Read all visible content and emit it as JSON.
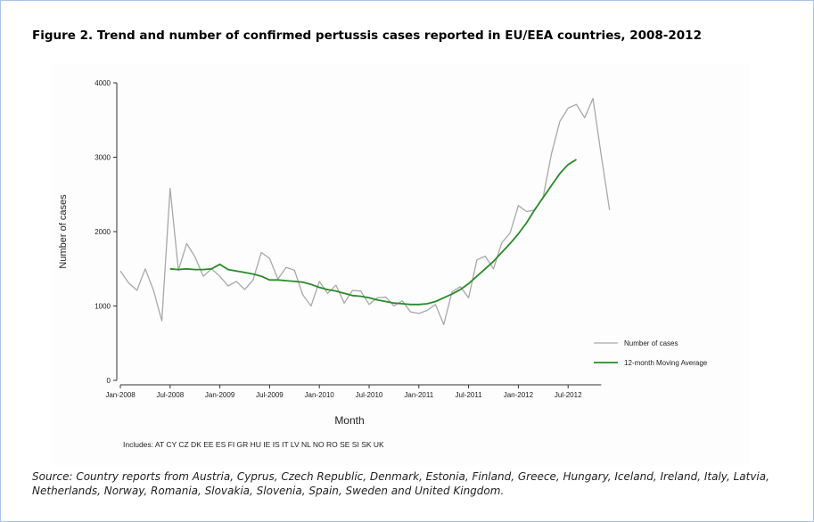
{
  "figure": {
    "title": "Figure 2. Trend and number of confirmed pertussis cases reported in EU/EEA countries, 2008-2012",
    "includes": "Includes: AT CY CZ DK EE ES FI GR HU IE IS IT LV NL NO RO SE SI SK UK",
    "source": "Source: Country reports from Austria, Cyprus, Czech Republic, Denmark, Estonia, Finland, Greece, Hungary, Iceland, Ireland, Italy, Latvia, Netherlands, Norway, Romania, Slovakia, Slovenia, Spain, Sweden and United Kingdom."
  },
  "chart_data": {
    "type": "line",
    "xlabel": "Month",
    "ylabel": "Number of cases",
    "ylim": [
      0,
      4000
    ],
    "y_ticks": [
      "0",
      "1000",
      "2000",
      "3000",
      "4000"
    ],
    "x_ticks": [
      "Jan-2008",
      "Jul-2008",
      "Jan-2009",
      "Jul-2009",
      "Jan-2010",
      "Jul-2010",
      "Jan-2011",
      "Jul-2011",
      "Jan-2012",
      "Jul-2012"
    ],
    "x_start": "Jan-2008",
    "grid": false,
    "legend_position": "right",
    "series": [
      {
        "name": "Number of cases",
        "color": "#a8a8a8",
        "values": [
          1470,
          1310,
          1210,
          1500,
          1210,
          800,
          2580,
          1480,
          1840,
          1660,
          1400,
          1500,
          1400,
          1270,
          1330,
          1220,
          1350,
          1720,
          1640,
          1360,
          1520,
          1480,
          1150,
          1000,
          1330,
          1170,
          1280,
          1040,
          1210,
          1200,
          1020,
          1110,
          1120,
          1000,
          1070,
          920,
          900,
          940,
          1020,
          750,
          1190,
          1260,
          1110,
          1620,
          1670,
          1500,
          1850,
          1980,
          2350,
          2270,
          2290,
          2470,
          3050,
          3480,
          3660,
          3710,
          3530,
          3790,
          3020,
          2290
        ]
      },
      {
        "name": "12-month Moving Average",
        "color": "#2a8a2a",
        "start_index": 6,
        "values": [
          1500,
          1490,
          1500,
          1490,
          1490,
          1500,
          1560,
          1490,
          1470,
          1450,
          1430,
          1400,
          1350,
          1350,
          1340,
          1330,
          1320,
          1290,
          1250,
          1220,
          1200,
          1170,
          1140,
          1130,
          1110,
          1080,
          1060,
          1040,
          1030,
          1020,
          1020,
          1030,
          1060,
          1110,
          1160,
          1220,
          1300,
          1400,
          1500,
          1600,
          1720,
          1840,
          1970,
          2120,
          2300,
          2460,
          2620,
          2780,
          2900,
          2970
        ]
      }
    ]
  }
}
